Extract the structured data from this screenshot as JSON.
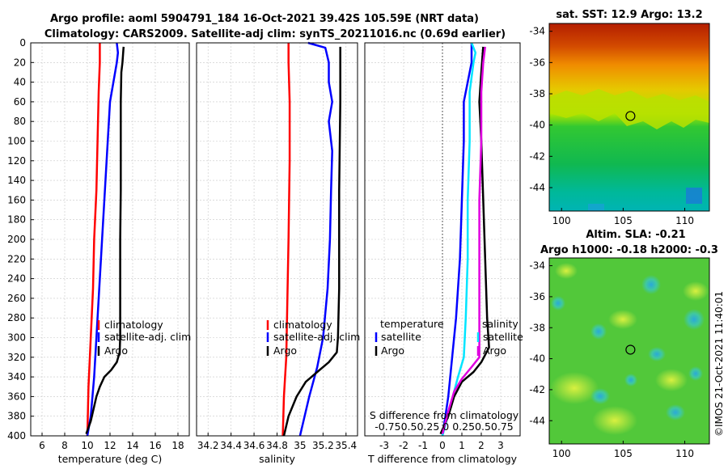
{
  "header": {
    "line1": "Argo profile: aoml 5904791_184 16-Oct-2021 39.42S 105.59E (NRT data)",
    "line2": "Climatology: CARS2009. Satellite-adj clim: synTS_20211016.nc (0.69d earlier)"
  },
  "footer_stamp": "©IMOS 21-Oct-2021 11:40:01",
  "colors": {
    "climatology": "#ff0000",
    "satellite": "#0000ff",
    "argo": "#000000",
    "sat_salinity": "#00e5ff",
    "argo_salinity": "#e000e0"
  },
  "chart_data": [
    {
      "type": "line",
      "id": "temperature",
      "xlabel": "temperature (deg C)",
      "ylabel": "",
      "xlim": [
        5,
        19
      ],
      "ylim": [
        400,
        0
      ],
      "xticks": [
        "6",
        "8",
        "10",
        "12",
        "14",
        "16",
        "18"
      ],
      "yticks": [
        "0",
        "20",
        "40",
        "60",
        "80",
        "100",
        "120",
        "140",
        "160",
        "180",
        "200",
        "220",
        "240",
        "260",
        "280",
        "300",
        "320",
        "340",
        "360",
        "380",
        "400"
      ],
      "legend": [
        "climatology",
        "satellite-adj. clim",
        "Argo"
      ],
      "series": [
        {
          "name": "climatology",
          "color": "#ff0000",
          "points": [
            [
              11.1,
              0
            ],
            [
              11.1,
              20
            ],
            [
              11.0,
              50
            ],
            [
              10.9,
              100
            ],
            [
              10.8,
              150
            ],
            [
              10.6,
              200
            ],
            [
              10.5,
              250
            ],
            [
              10.3,
              300
            ],
            [
              10.1,
              350
            ],
            [
              10.0,
              400
            ]
          ]
        },
        {
          "name": "satellite-adj. clim",
          "color": "#0000ff",
          "points": [
            [
              12.6,
              0
            ],
            [
              12.7,
              10
            ],
            [
              12.6,
              20
            ],
            [
              12.3,
              40
            ],
            [
              12.0,
              60
            ],
            [
              11.9,
              80
            ],
            [
              11.7,
              120
            ],
            [
              11.5,
              160
            ],
            [
              11.3,
              200
            ],
            [
              11.0,
              260
            ],
            [
              10.8,
              300
            ],
            [
              10.6,
              340
            ],
            [
              10.3,
              380
            ],
            [
              10.0,
              400
            ]
          ]
        },
        {
          "name": "Argo",
          "color": "#000000",
          "points": [
            [
              13.2,
              4
            ],
            [
              13.1,
              20
            ],
            [
              13.0,
              30
            ],
            [
              12.95,
              60
            ],
            [
              12.95,
              150
            ],
            [
              12.9,
              200
            ],
            [
              12.9,
              300
            ],
            [
              12.85,
              315
            ],
            [
              12.6,
              325
            ],
            [
              12.1,
              333
            ],
            [
              11.5,
              340
            ],
            [
              11.1,
              350
            ],
            [
              10.8,
              360
            ],
            [
              10.6,
              370
            ],
            [
              10.3,
              385
            ],
            [
              9.9,
              398
            ]
          ]
        }
      ]
    },
    {
      "type": "line",
      "id": "salinity",
      "xlabel": "salinity",
      "xlim": [
        34.1,
        35.5
      ],
      "ylim": [
        400,
        0
      ],
      "xticks": [
        "34.2",
        "34.4",
        "34.6",
        "34.8",
        "35",
        "35.2",
        "35.4"
      ],
      "legend": [
        "climatology",
        "satellite-adj. clim",
        "Argo"
      ],
      "series": [
        {
          "name": "climatology",
          "color": "#ff0000",
          "points": [
            [
              34.9,
              0
            ],
            [
              34.9,
              20
            ],
            [
              34.91,
              60
            ],
            [
              34.91,
              120
            ],
            [
              34.9,
              200
            ],
            [
              34.89,
              260
            ],
            [
              34.88,
              320
            ],
            [
              34.86,
              360
            ],
            [
              34.85,
              400
            ]
          ]
        },
        {
          "name": "satellite-adj. clim",
          "color": "#0000ff",
          "points": [
            [
              35.07,
              0
            ],
            [
              35.22,
              5
            ],
            [
              35.25,
              20
            ],
            [
              35.25,
              40
            ],
            [
              35.28,
              60
            ],
            [
              35.25,
              80
            ],
            [
              35.28,
              110
            ],
            [
              35.27,
              150
            ],
            [
              35.26,
              200
            ],
            [
              35.24,
              250
            ],
            [
              35.2,
              300
            ],
            [
              35.15,
              330
            ],
            [
              35.08,
              360
            ],
            [
              35.0,
              400
            ]
          ]
        },
        {
          "name": "Argo",
          "color": "#000000",
          "points": [
            [
              35.35,
              4
            ],
            [
              35.35,
              60
            ],
            [
              35.34,
              150
            ],
            [
              35.34,
              250
            ],
            [
              35.33,
              300
            ],
            [
              35.32,
              315
            ],
            [
              35.25,
              325
            ],
            [
              35.15,
              335
            ],
            [
              35.05,
              345
            ],
            [
              34.97,
              360
            ],
            [
              34.9,
              380
            ],
            [
              34.86,
              400
            ]
          ]
        }
      ]
    },
    {
      "type": "line",
      "id": "difference",
      "xlabel": "T difference from climatology",
      "xlim": [
        -4,
        4
      ],
      "ylim": [
        400,
        0
      ],
      "xticks": [
        "-3",
        "-2",
        "-1",
        "0",
        "1",
        "2",
        "3"
      ],
      "legend_temperature_title": "temperature",
      "legend_salinity_title": "salinity",
      "legend_temperature": [
        "satellite",
        "Argo"
      ],
      "legend_salinity": [
        "satellite",
        "Argo"
      ],
      "s_axis_title": "S difference from climatology",
      "s_axis_ticks": "-0.750.50.25 0 0.250.50.75",
      "series": [
        {
          "name": "T satellite",
          "color": "#0000ff",
          "points": [
            [
              1.5,
              0
            ],
            [
              1.5,
              20
            ],
            [
              1.3,
              40
            ],
            [
              1.1,
              60
            ],
            [
              1.1,
              100
            ],
            [
              1.0,
              160
            ],
            [
              0.9,
              220
            ],
            [
              0.7,
              280
            ],
            [
              0.5,
              320
            ],
            [
              0.3,
              360
            ],
            [
              0.0,
              400
            ]
          ]
        },
        {
          "name": "S satellite",
          "color": "#00e5ff",
          "points": [
            [
              1.5,
              0
            ],
            [
              1.7,
              10
            ],
            [
              1.6,
              20
            ],
            [
              1.4,
              50
            ],
            [
              1.4,
              100
            ],
            [
              1.3,
              160
            ],
            [
              1.3,
              220
            ],
            [
              1.2,
              280
            ],
            [
              1.1,
              320
            ],
            [
              0.8,
              340
            ],
            [
              0.4,
              370
            ],
            [
              0.0,
              400
            ]
          ]
        },
        {
          "name": "T Argo",
          "color": "#000000",
          "points": [
            [
              2.1,
              4
            ],
            [
              2.0,
              30
            ],
            [
              1.9,
              60
            ],
            [
              2.0,
              100
            ],
            [
              2.1,
              160
            ],
            [
              2.2,
              220
            ],
            [
              2.3,
              280
            ],
            [
              2.4,
              310
            ],
            [
              2.0,
              325
            ],
            [
              1.6,
              335
            ],
            [
              1.0,
              345
            ],
            [
              0.6,
              360
            ],
            [
              0.3,
              380
            ],
            [
              -0.1,
              398
            ]
          ]
        },
        {
          "name": "S Argo",
          "color": "#e000e0",
          "points": [
            [
              2.2,
              4
            ],
            [
              2.1,
              20
            ],
            [
              2.0,
              50
            ],
            [
              2.0,
              100
            ],
            [
              1.9,
              160
            ],
            [
              1.9,
              220
            ],
            [
              1.9,
              280
            ],
            [
              1.9,
              320
            ],
            [
              1.5,
              330
            ],
            [
              1.0,
              342
            ],
            [
              0.6,
              355
            ],
            [
              0.3,
              375
            ],
            [
              0.0,
              398
            ]
          ]
        }
      ]
    },
    {
      "type": "heatmap",
      "id": "sst-map",
      "title": "sat. SST: 12.9 Argo: 13.2",
      "xticks": [
        "100",
        "105",
        "110"
      ],
      "yticks": [
        "-34",
        "-36",
        "-38",
        "-40",
        "-42",
        "-44"
      ],
      "xlim": [
        99,
        112
      ],
      "ylim": [
        -45.5,
        -33.5
      ],
      "marker": {
        "lon": 105.59,
        "lat": -39.42
      }
    },
    {
      "type": "heatmap",
      "id": "sla-map",
      "title_line1": "Altim. SLA: -0.21",
      "title_line2": "Argo h1000: -0.18 h2000: -0.3",
      "xticks": [
        "100",
        "105",
        "110"
      ],
      "yticks": [
        "-34",
        "-36",
        "-38",
        "-40",
        "-42",
        "-44"
      ],
      "xlim": [
        99,
        112
      ],
      "ylim": [
        -45.5,
        -33.5
      ],
      "marker": {
        "lon": 105.59,
        "lat": -39.42
      }
    }
  ]
}
